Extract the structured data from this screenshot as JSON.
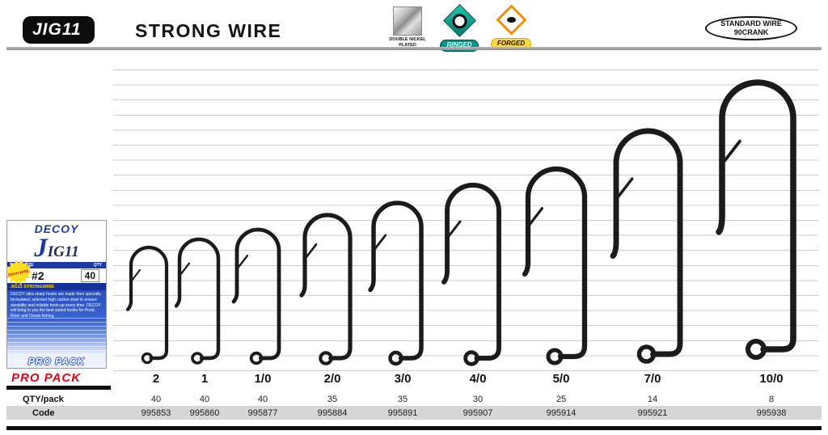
{
  "header": {
    "badge": "JIG11",
    "title": "STRONG WIRE",
    "features": [
      {
        "label": "DOUBLE NICKEL PLATED"
      },
      {
        "label": "RINGED"
      },
      {
        "label": "FORGED"
      }
    ],
    "wire_badge": {
      "line1": "STANDARD WIRE",
      "line2": "90CRANK"
    }
  },
  "package": {
    "brand": "DECOY",
    "model": "JIG11",
    "hook_size_label": "HOOK SIZE",
    "qty_label": "QTY",
    "hook_size": "#2",
    "qty": "40",
    "burst": "TOUGH WIRE!!",
    "band": "JIG11 STRONGWIRE",
    "description": "DECOY ultra sharp hooks are made from specially formulated, selected high carbon steel to ensure durability and reliable hook-up every time. DECOY will bring to you the best suited hooks for Pond, River and Ocean fishing.",
    "propack": "PRO PACK"
  },
  "propack_label": "PRO PACK",
  "table": {
    "qty_label": "QTY/pack",
    "code_label": "Code",
    "columns": [
      {
        "size": "2",
        "qty": "40",
        "code": "995853"
      },
      {
        "size": "1",
        "qty": "40",
        "code": "995860"
      },
      {
        "size": "1/0",
        "qty": "40",
        "code": "995877"
      },
      {
        "size": "2/0",
        "qty": "35",
        "code": "995884"
      },
      {
        "size": "3/0",
        "qty": "35",
        "code": "995891"
      },
      {
        "size": "4/0",
        "qty": "30",
        "code": "995907"
      },
      {
        "size": "5/0",
        "qty": "25",
        "code": "995914"
      },
      {
        "size": "7/0",
        "qty": "14",
        "code": "995921"
      },
      {
        "size": "10/0",
        "qty": "8",
        "code": "995938"
      }
    ]
  },
  "colors": {
    "accent_red": "#e60014",
    "teal": "#00968a",
    "orange": "#f29100",
    "package_blue": "#1c3aa6",
    "code_band": "#d6d6d6"
  }
}
